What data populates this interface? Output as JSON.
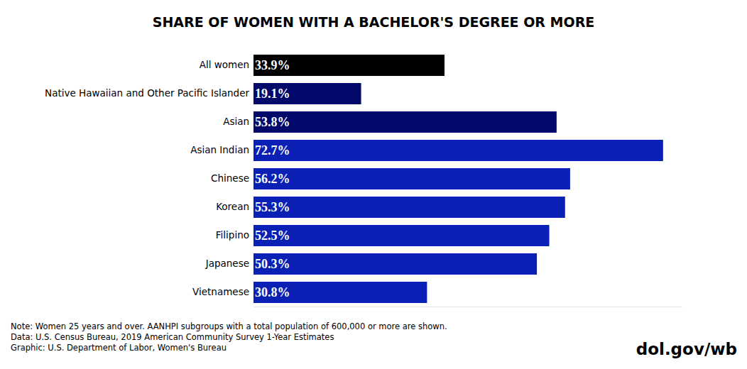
{
  "chart_data": {
    "type": "bar",
    "orientation": "horizontal",
    "title": "SHARE OF WOMEN WITH A BACHELOR'S DEGREE OR MORE",
    "categories": [
      "All women",
      "Native Hawaiian and Other Pacific Islander",
      "Asian",
      "Asian Indian",
      "Chinese",
      "Korean",
      "Filipino",
      "Japanese",
      "Vietnamese"
    ],
    "values": [
      33.9,
      19.1,
      53.8,
      72.7,
      56.2,
      55.3,
      52.5,
      50.3,
      30.8
    ],
    "value_labels": [
      "33.9%",
      "19.1%",
      "53.8%",
      "72.7%",
      "56.2%",
      "55.3%",
      "52.5%",
      "50.3%",
      "30.8%"
    ],
    "colors": [
      "#000000",
      "#03096b",
      "#03096b",
      "#0a1fb4",
      "#0a1fb4",
      "#0a1fb4",
      "#0a1fb4",
      "#0a1fb4",
      "#0a1fb4"
    ],
    "xlim": [
      0,
      76
    ],
    "data_labels": true,
    "tick_labels": "y",
    "grid": false,
    "annotations": [
      "Note: Women 25 years and over. AANHPI subgroups with a total population of 600,000 or more are shown.",
      "Data: U.S. Census Bureau, 2019 American Community Survey 1-Year Estimates",
      "Graphic: U.S. Department of Labor, Women's Bureau",
      "dol.gov/wb"
    ]
  }
}
